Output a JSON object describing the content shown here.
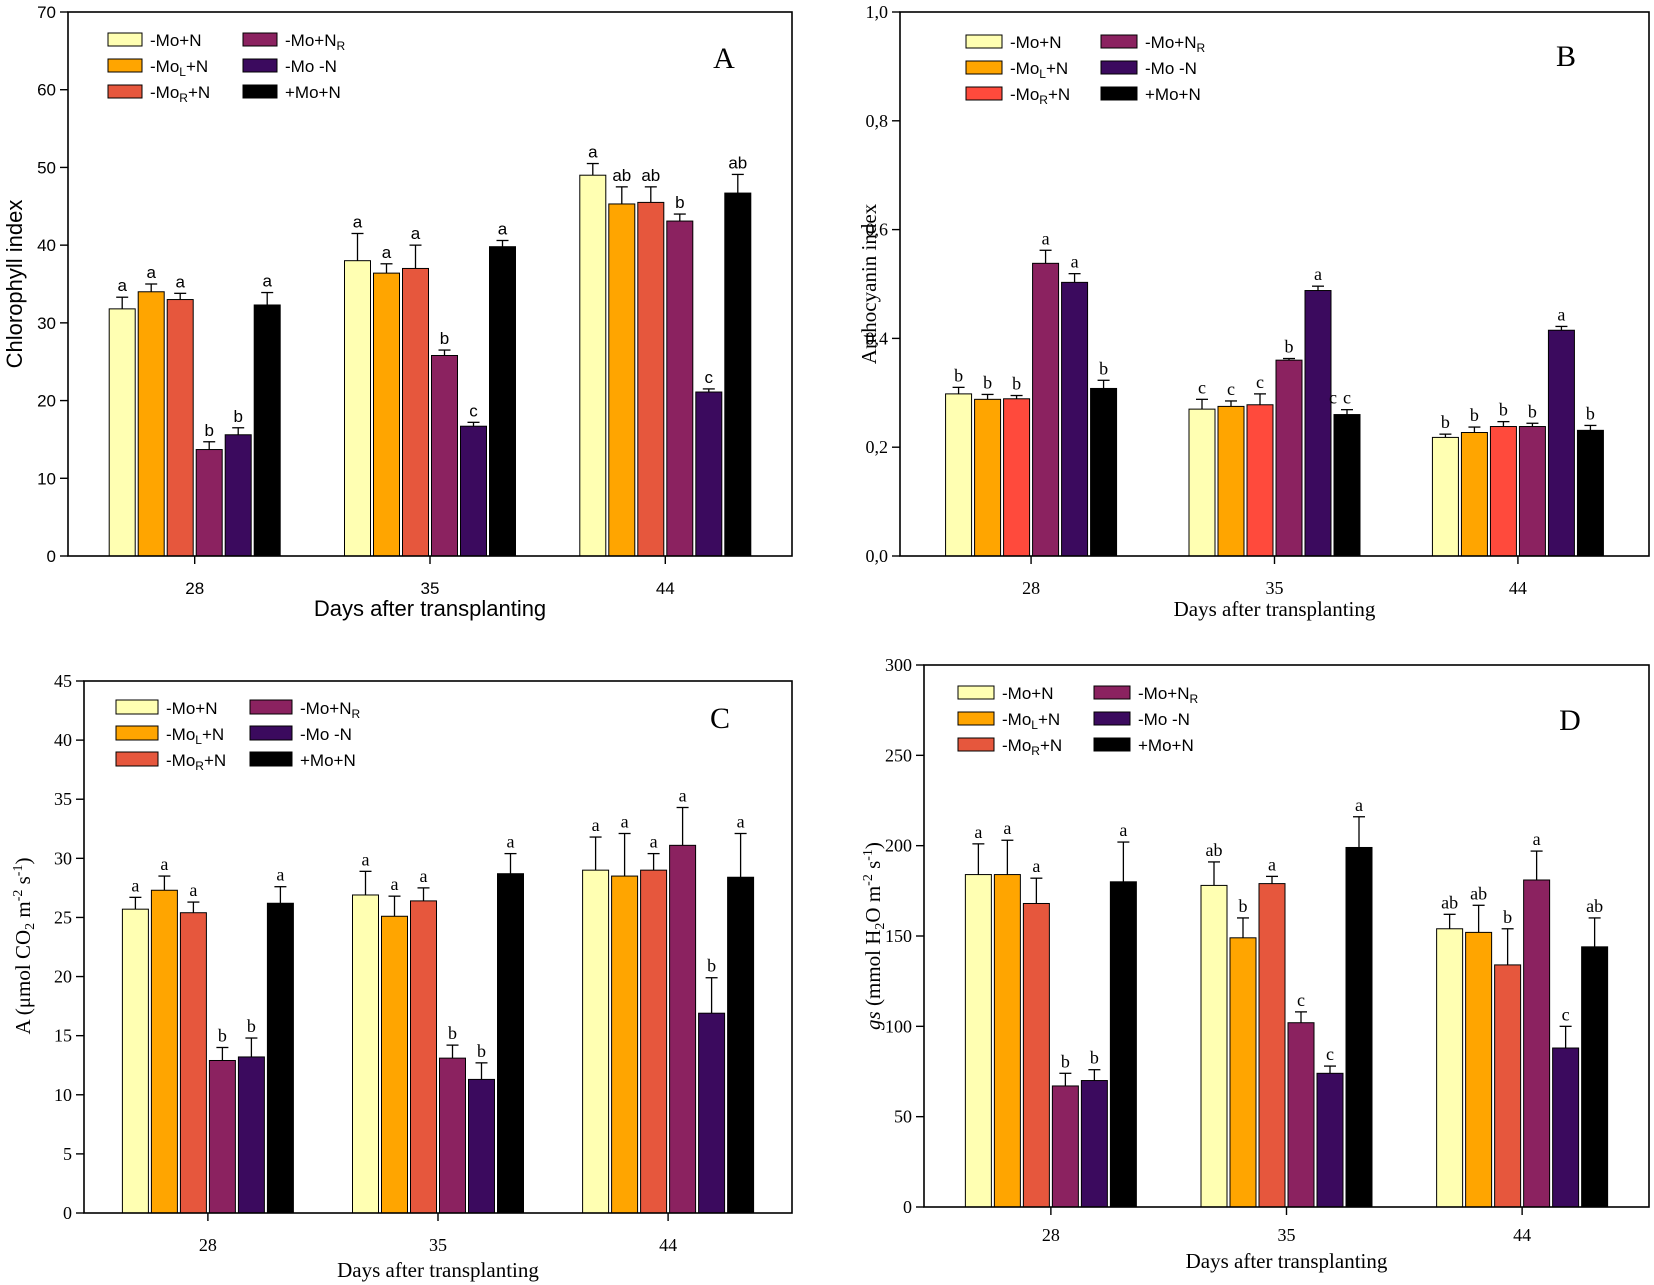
{
  "chart_data": [
    {
      "type": "bar",
      "panel": "A",
      "title": "",
      "xlabel": "Days after transplanting",
      "ylabel": "Chlorophyll index",
      "ylim": [
        0,
        70
      ],
      "yticks": [
        0,
        10,
        20,
        30,
        40,
        50,
        60,
        70
      ],
      "ytick_labels": [
        "0",
        "10",
        "20",
        "30",
        "40",
        "50",
        "60",
        "70"
      ],
      "categories": [
        "28",
        "35",
        "44"
      ],
      "legend": [
        {
          "prefix": "-Mo+N",
          "sub": "",
          "suffix": "",
          "color": "#ffffb2"
        },
        {
          "prefix": "-Mo",
          "sub": "L",
          "suffix": "+N",
          "color": "#ffa500"
        },
        {
          "prefix": "-Mo",
          "sub": "R",
          "suffix": "+N",
          "color": "#e6573d"
        },
        {
          "prefix": "-Mo+N",
          "sub": "R",
          "suffix": "",
          "color": "#8b2260"
        },
        {
          "prefix": "-Mo -N",
          "sub": "",
          "suffix": "",
          "color": "#3b0a5e"
        },
        {
          "prefix": "+Mo+N",
          "sub": "",
          "suffix": "",
          "color": "#000000"
        }
      ],
      "series": [
        {
          "name": "-Mo+N",
          "values": [
            31.8,
            38.0,
            49.0
          ],
          "errors": [
            1.5,
            3.5,
            1.5
          ],
          "letters": [
            "a",
            "a",
            "a"
          ]
        },
        {
          "name": "-MoL+N",
          "values": [
            34.0,
            36.4,
            45.3
          ],
          "errors": [
            1.0,
            1.2,
            2.2
          ],
          "letters": [
            "a",
            "a",
            "ab"
          ]
        },
        {
          "name": "-MoR+N",
          "values": [
            33.0,
            37.0,
            45.5
          ],
          "errors": [
            0.8,
            3.0,
            2.0
          ],
          "letters": [
            "a",
            "a",
            "ab"
          ]
        },
        {
          "name": "-Mo+NR",
          "values": [
            13.7,
            25.8,
            43.1
          ],
          "errors": [
            1.0,
            0.7,
            0.9
          ],
          "letters": [
            "b",
            "b",
            "b"
          ]
        },
        {
          "name": "-Mo -N",
          "values": [
            15.6,
            16.7,
            21.1
          ],
          "errors": [
            0.9,
            0.5,
            0.4
          ],
          "letters": [
            "b",
            "c",
            "c"
          ]
        },
        {
          "name": "+Mo+N",
          "values": [
            32.3,
            39.8,
            46.7
          ],
          "errors": [
            1.6,
            0.8,
            2.4
          ],
          "letters": [
            "a",
            "a",
            "ab"
          ]
        }
      ]
    },
    {
      "type": "bar",
      "panel": "B",
      "title": "",
      "xlabel": "Days after transplanting",
      "ylabel": "Anthocyanin index",
      "ylim": [
        0,
        1
      ],
      "yticks": [
        0,
        0.2,
        0.4,
        0.6,
        0.8,
        1.0
      ],
      "ytick_labels": [
        "0,0",
        "0,2",
        "0,4",
        "0,6",
        "0,8",
        "1,0"
      ],
      "categories": [
        "28",
        "35",
        "44"
      ],
      "legend": [
        {
          "prefix": "-Mo+N",
          "sub": "",
          "suffix": "",
          "color": "#ffffb2"
        },
        {
          "prefix": "-Mo",
          "sub": "L",
          "suffix": "+N",
          "color": "#ffa500"
        },
        {
          "prefix": "-Mo",
          "sub": "R",
          "suffix": "+N",
          "color": "#ff4a3c"
        },
        {
          "prefix": "-Mo+N",
          "sub": "R",
          "suffix": "",
          "color": "#8b2260"
        },
        {
          "prefix": "-Mo -N",
          "sub": "",
          "suffix": "",
          "color": "#3b0a5e"
        },
        {
          "prefix": "+Mo+N",
          "sub": "",
          "suffix": "",
          "color": "#000000"
        }
      ],
      "series": [
        {
          "name": "-Mo+N",
          "values": [
            0.298,
            0.27,
            0.218
          ],
          "errors": [
            0.012,
            0.018,
            0.006
          ],
          "letters": [
            "b",
            "c",
            "b"
          ]
        },
        {
          "name": "-MoL+N",
          "values": [
            0.288,
            0.275,
            0.227
          ],
          "errors": [
            0.009,
            0.01,
            0.01
          ],
          "letters": [
            "b",
            "c",
            "b"
          ]
        },
        {
          "name": "-MoR+N",
          "values": [
            0.289,
            0.278,
            0.238
          ],
          "errors": [
            0.006,
            0.02,
            0.009
          ],
          "letters": [
            "b",
            "c",
            "b"
          ]
        },
        {
          "name": "-Mo+NR",
          "values": [
            0.538,
            0.36,
            0.238
          ],
          "errors": [
            0.024,
            0.003,
            0.006
          ],
          "letters": [
            "a",
            "b",
            "b"
          ]
        },
        {
          "name": "-Mo -N",
          "values": [
            0.503,
            0.488,
            0.415
          ],
          "errors": [
            0.016,
            0.008,
            0.007
          ],
          "letters": [
            "a",
            "a",
            "a"
          ]
        },
        {
          "name": "+Mo+N",
          "values": [
            0.308,
            0.26,
            0.231
          ],
          "errors": [
            0.015,
            0.009,
            0.009
          ],
          "letters": [
            "b",
            "c",
            "b"
          ]
        }
      ],
      "annotations": [
        "c"
      ]
    },
    {
      "type": "bar",
      "panel": "C",
      "title": "",
      "xlabel": "Days after transplanting",
      "ylabel_parts": [
        "A (μmol CO",
        "2",
        " m",
        "-2",
        " s",
        "-1",
        ")"
      ],
      "ylim": [
        0,
        45
      ],
      "yticks": [
        0,
        5,
        10,
        15,
        20,
        25,
        30,
        35,
        40,
        45
      ],
      "ytick_labels": [
        "0",
        "5",
        "10",
        "15",
        "20",
        "25",
        "30",
        "35",
        "40",
        "45"
      ],
      "categories": [
        "28",
        "35",
        "44"
      ],
      "legend": [
        {
          "prefix": "-Mo+N",
          "sub": "",
          "suffix": "",
          "color": "#ffffb2"
        },
        {
          "prefix": "-Mo",
          "sub": "L",
          "suffix": "+N",
          "color": "#ffa500"
        },
        {
          "prefix": "-Mo",
          "sub": "R",
          "suffix": "+N",
          "color": "#e6573d"
        },
        {
          "prefix": "-Mo+N",
          "sub": "R",
          "suffix": "",
          "color": "#8b2260"
        },
        {
          "prefix": "-Mo -N",
          "sub": "",
          "suffix": "",
          "color": "#3b0a5e"
        },
        {
          "prefix": "+Mo+N",
          "sub": "",
          "suffix": "",
          "color": "#000000"
        }
      ],
      "series": [
        {
          "name": "-Mo+N",
          "values": [
            25.7,
            26.9,
            29.0
          ],
          "errors": [
            1.0,
            2.0,
            2.8
          ],
          "letters": [
            "a",
            "a",
            "a"
          ]
        },
        {
          "name": "-MoL+N",
          "values": [
            27.3,
            25.1,
            28.5
          ],
          "errors": [
            1.2,
            1.7,
            3.6
          ],
          "letters": [
            "a",
            "a",
            "a"
          ]
        },
        {
          "name": "-MoR+N",
          "values": [
            25.4,
            26.4,
            29.0
          ],
          "errors": [
            0.9,
            1.1,
            1.4
          ],
          "letters": [
            "a",
            "a",
            "a"
          ]
        },
        {
          "name": "-Mo+NR",
          "values": [
            12.9,
            13.1,
            31.1
          ],
          "errors": [
            1.1,
            1.1,
            3.2
          ],
          "letters": [
            "b",
            "b",
            "a"
          ]
        },
        {
          "name": "-Mo -N",
          "values": [
            13.2,
            11.3,
            16.9
          ],
          "errors": [
            1.6,
            1.4,
            3.0
          ],
          "letters": [
            "b",
            "b",
            "b"
          ]
        },
        {
          "name": "+Mo+N",
          "values": [
            26.2,
            28.7,
            28.4
          ],
          "errors": [
            1.4,
            1.7,
            3.7
          ],
          "letters": [
            "a",
            "a",
            "a"
          ]
        }
      ]
    },
    {
      "type": "bar",
      "panel": "D",
      "title": "",
      "xlabel": "Days after transplanting",
      "ylabel_parts": [
        "gs",
        " (mmol H",
        "2",
        "O m",
        "-2",
        " s",
        "-1",
        ")"
      ],
      "ylim": [
        0,
        300
      ],
      "yticks": [
        0,
        50,
        100,
        150,
        200,
        250,
        300
      ],
      "ytick_labels": [
        "0",
        "50",
        "100",
        "150",
        "200",
        "250",
        "300"
      ],
      "categories": [
        "28",
        "35",
        "44"
      ],
      "legend": [
        {
          "prefix": "-Mo+N",
          "sub": "",
          "suffix": "",
          "color": "#ffffb2"
        },
        {
          "prefix": "-Mo",
          "sub": "L",
          "suffix": "+N",
          "color": "#ffa500"
        },
        {
          "prefix": "-Mo",
          "sub": "R",
          "suffix": "+N",
          "color": "#e6573d"
        },
        {
          "prefix": "-Mo+N",
          "sub": "R",
          "suffix": "",
          "color": "#8b2260"
        },
        {
          "prefix": "-Mo -N",
          "sub": "",
          "suffix": "",
          "color": "#3b0a5e"
        },
        {
          "prefix": "+Mo+N",
          "sub": "",
          "suffix": "",
          "color": "#000000"
        }
      ],
      "series": [
        {
          "name": "-Mo+N",
          "values": [
            184,
            178,
            154
          ],
          "errors": [
            17,
            13,
            8
          ],
          "letters": [
            "a",
            "ab",
            "ab"
          ]
        },
        {
          "name": "-MoL+N",
          "values": [
            184,
            149,
            152
          ],
          "errors": [
            19,
            11,
            15
          ],
          "letters": [
            "a",
            "b",
            "ab"
          ]
        },
        {
          "name": "-MoR+N",
          "values": [
            168,
            179,
            134
          ],
          "errors": [
            14,
            4,
            20
          ],
          "letters": [
            "a",
            "a",
            "b"
          ]
        },
        {
          "name": "-Mo+NR",
          "values": [
            67,
            102,
            181
          ],
          "errors": [
            7,
            6,
            16
          ],
          "letters": [
            "b",
            "c",
            "a"
          ]
        },
        {
          "name": "-Mo -N",
          "values": [
            70,
            74,
            88
          ],
          "errors": [
            6,
            4,
            12
          ],
          "letters": [
            "b",
            "c",
            "c"
          ]
        },
        {
          "name": "+Mo+N",
          "values": [
            180,
            199,
            144
          ],
          "errors": [
            22,
            17,
            16
          ],
          "letters": [
            "a",
            "a",
            "ab"
          ]
        }
      ]
    }
  ]
}
